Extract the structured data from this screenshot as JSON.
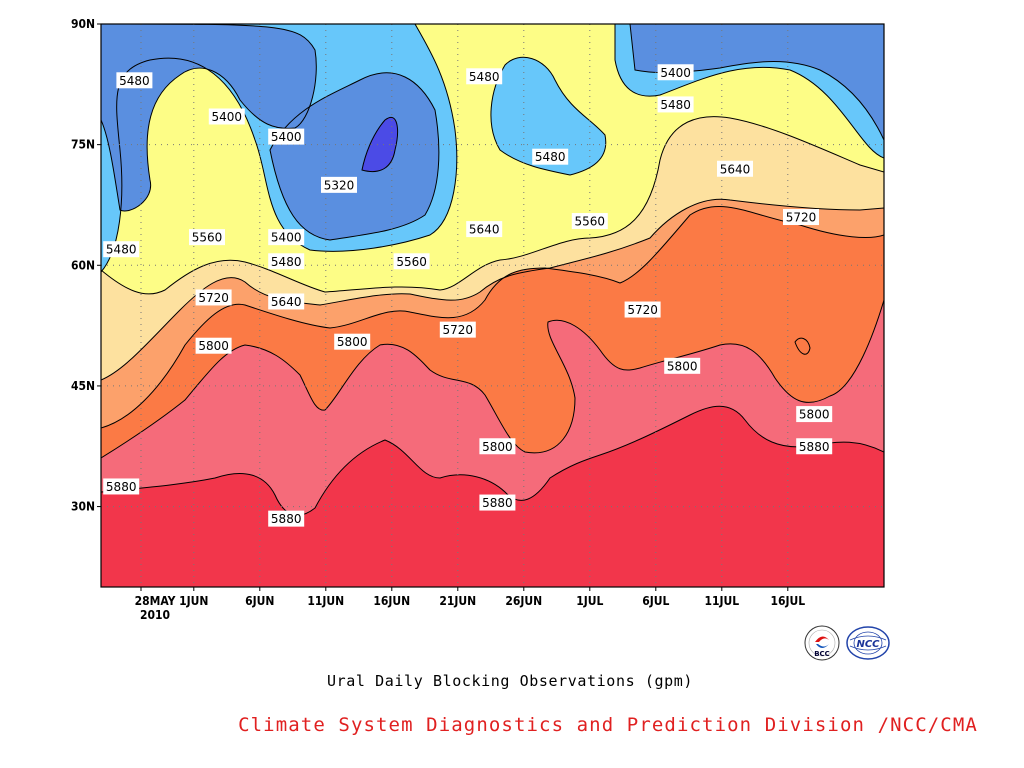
{
  "chart_data": {
    "type": "contour",
    "title": "Ural Daily Blocking Observations (gpm)",
    "credit": "Climate System Diagnostics and Prediction Division /NCC/CMA",
    "y_ticks": [
      "90N",
      "75N",
      "60N",
      "45N",
      "30N"
    ],
    "y_values": [
      90,
      75,
      60,
      45,
      30
    ],
    "ylim": [
      20,
      90
    ],
    "x_ticks": [
      "28MAY",
      "1JUN",
      "6JUN",
      "11JUN",
      "16JUN",
      "21JUN",
      "26JUN",
      "1JUL",
      "6JUL",
      "11JUL",
      "16JUL"
    ],
    "x_year_label": "2010",
    "contour_levels": [
      5320,
      5400,
      5480,
      5560,
      5640,
      5720,
      5800,
      5880
    ],
    "level_colors": {
      "5320": "#4b4be6",
      "5400": "#5a8fe0",
      "5480": "#67c7fa",
      "5560": "#fdfd86",
      "5640": "#fde19f",
      "5720": "#fca16b",
      "5800": "#fb7a45",
      "5880": "#f56b7a",
      "max": "#f2364b"
    },
    "contour_labels": [
      {
        "text": "5480",
        "day": -0.5,
        "lat": 83
      },
      {
        "text": "5480",
        "day": -1.5,
        "lat": 62
      },
      {
        "text": "5400",
        "day": 6.5,
        "lat": 78.5
      },
      {
        "text": "5400",
        "day": 11,
        "lat": 76
      },
      {
        "text": "5320",
        "day": 15,
        "lat": 70
      },
      {
        "text": "5560",
        "day": 5,
        "lat": 63.5
      },
      {
        "text": "5400",
        "day": 11,
        "lat": 63.5
      },
      {
        "text": "5480",
        "day": 11,
        "lat": 60.5
      },
      {
        "text": "5560",
        "day": 20.5,
        "lat": 60.5
      },
      {
        "text": "5640",
        "day": 11,
        "lat": 55.5
      },
      {
        "text": "5720",
        "day": 5.5,
        "lat": 56
      },
      {
        "text": "5720",
        "day": 24,
        "lat": 52
      },
      {
        "text": "5800",
        "day": 5.5,
        "lat": 50
      },
      {
        "text": "5800",
        "day": 16,
        "lat": 50.5
      },
      {
        "text": "5880",
        "day": -1.5,
        "lat": 32.5
      },
      {
        "text": "5880",
        "day": 11,
        "lat": 28.5
      },
      {
        "text": "5480",
        "day": 26,
        "lat": 83.5
      },
      {
        "text": "5480",
        "day": 31,
        "lat": 73.5
      },
      {
        "text": "5640",
        "day": 26,
        "lat": 64.5
      },
      {
        "text": "5560",
        "day": 34,
        "lat": 65.5
      },
      {
        "text": "5400",
        "day": 40.5,
        "lat": 84
      },
      {
        "text": "5480",
        "day": 40.5,
        "lat": 80
      },
      {
        "text": "5800",
        "day": 27,
        "lat": 37.5
      },
      {
        "text": "5880",
        "day": 27,
        "lat": 30.5
      },
      {
        "text": "5720",
        "day": 38,
        "lat": 54.5
      },
      {
        "text": "5800",
        "day": 41,
        "lat": 47.5
      },
      {
        "text": "5640",
        "day": 45,
        "lat": 72
      },
      {
        "text": "5720",
        "day": 50,
        "lat": 66
      },
      {
        "text": "5800",
        "day": 51,
        "lat": 41.5
      },
      {
        "text": "5880",
        "day": 51,
        "lat": 37.5
      }
    ],
    "grid": "dotted"
  }
}
